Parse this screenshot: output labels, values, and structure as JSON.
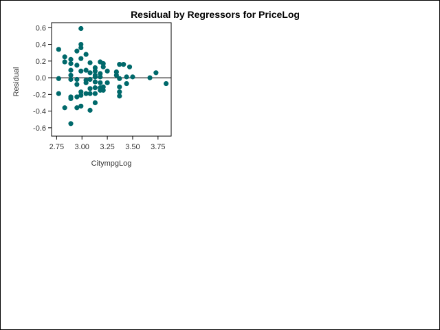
{
  "chart_data": {
    "type": "scatter",
    "title": "Residual by Regressors for PriceLog",
    "xlabel": "CitympgLog",
    "ylabel": "Residual",
    "xlim": [
      2.7,
      3.88
    ],
    "ylim": [
      -0.7,
      0.66
    ],
    "xticks": [
      2.75,
      3.0,
      3.25,
      3.5,
      3.75
    ],
    "xtick_labels": [
      "2.75",
      "3.00",
      "3.25",
      "3.50",
      "3.75"
    ],
    "yticks": [
      -0.6,
      -0.4,
      -0.2,
      0.0,
      0.2,
      0.4,
      0.6
    ],
    "ytick_labels": [
      "-0.6",
      "-0.4",
      "-0.2",
      "0.0",
      "0.2",
      "0.4",
      "0.6"
    ],
    "reference_line": 0,
    "grid": false,
    "colors": {
      "marker": "#00696b",
      "axis": "#000000",
      "text": "#333333"
    },
    "series": [
      {
        "name": "Residual",
        "points": [
          [
            2.77,
            0.34
          ],
          [
            2.77,
            -0.01
          ],
          [
            2.77,
            -0.19
          ],
          [
            2.83,
            0.25
          ],
          [
            2.83,
            0.19
          ],
          [
            2.83,
            -0.36
          ],
          [
            2.89,
            0.22
          ],
          [
            2.89,
            0.17
          ],
          [
            2.89,
            0.09
          ],
          [
            2.89,
            0.03
          ],
          [
            2.89,
            -0.02
          ],
          [
            2.89,
            -0.23
          ],
          [
            2.89,
            -0.25
          ],
          [
            2.89,
            -0.55
          ],
          [
            2.95,
            0.32
          ],
          [
            2.95,
            0.15
          ],
          [
            2.95,
            -0.02
          ],
          [
            2.95,
            -0.08
          ],
          [
            2.95,
            -0.23
          ],
          [
            2.95,
            -0.36
          ],
          [
            2.99,
            0.59
          ],
          [
            2.99,
            0.4
          ],
          [
            2.99,
            0.36
          ],
          [
            2.99,
            0.23
          ],
          [
            2.99,
            0.08
          ],
          [
            2.99,
            -0.17
          ],
          [
            2.99,
            -0.21
          ],
          [
            2.99,
            -0.34
          ],
          [
            3.04,
            0.28
          ],
          [
            3.04,
            0.09
          ],
          [
            3.04,
            -0.03
          ],
          [
            3.04,
            -0.06
          ],
          [
            3.04,
            -0.19
          ],
          [
            3.08,
            0.18
          ],
          [
            3.08,
            0.06
          ],
          [
            3.08,
            -0.02
          ],
          [
            3.08,
            -0.13
          ],
          [
            3.08,
            -0.19
          ],
          [
            3.08,
            -0.39
          ],
          [
            3.13,
            0.12
          ],
          [
            3.13,
            0.08
          ],
          [
            3.13,
            0.03
          ],
          [
            3.13,
            0.01
          ],
          [
            3.13,
            -0.05
          ],
          [
            3.13,
            -0.12
          ],
          [
            3.13,
            -0.19
          ],
          [
            3.13,
            -0.3
          ],
          [
            3.18,
            0.19
          ],
          [
            3.18,
            0.05
          ],
          [
            3.18,
            0.01
          ],
          [
            3.18,
            -0.06
          ],
          [
            3.18,
            -0.12
          ],
          [
            3.18,
            -0.15
          ],
          [
            3.21,
            0.17
          ],
          [
            3.21,
            0.13
          ],
          [
            3.21,
            -0.11
          ],
          [
            3.21,
            -0.15
          ],
          [
            3.25,
            0.08
          ],
          [
            3.25,
            -0.06
          ],
          [
            3.34,
            0.07
          ],
          [
            3.34,
            0.03
          ],
          [
            3.37,
            0.16
          ],
          [
            3.37,
            -0.01
          ],
          [
            3.37,
            -0.11
          ],
          [
            3.37,
            -0.17
          ],
          [
            3.37,
            -0.22
          ],
          [
            3.41,
            0.16
          ],
          [
            3.44,
            0.01
          ],
          [
            3.44,
            -0.07
          ],
          [
            3.47,
            0.13
          ],
          [
            3.5,
            0.01
          ],
          [
            3.67,
            0.0
          ],
          [
            3.73,
            0.06
          ],
          [
            3.83,
            -0.07
          ]
        ]
      }
    ]
  }
}
